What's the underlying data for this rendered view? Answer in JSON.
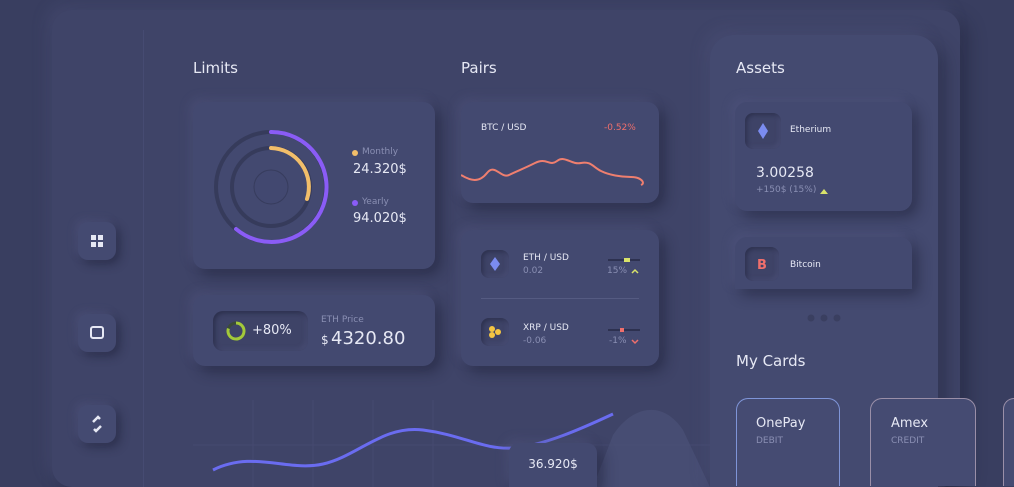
{
  "limits": {
    "title": "Limits",
    "monthly_label": "Monthly",
    "monthly_value": "24.320$",
    "yearly_label": "Yearly",
    "yearly_value": "94.020$"
  },
  "eth_price": {
    "change": "+80%",
    "label": "ETH Price",
    "currency": "$",
    "value": "4320.80"
  },
  "pairs": {
    "title": "Pairs",
    "btc": {
      "name": "BTC / USD",
      "change": "-0.52%"
    },
    "rows": [
      {
        "name": "ETH / USD",
        "value": "0.02",
        "change": "15%"
      },
      {
        "name": "XRP / USD",
        "value": "-0.06",
        "change": "-1%"
      }
    ]
  },
  "chart": {
    "tooltip": "36.920$"
  },
  "assets": {
    "title": "Assets",
    "items": [
      {
        "name": "Etherium",
        "value": "3.00258",
        "change": "+150$ (15%)"
      },
      {
        "name": "Bitcoin"
      }
    ]
  },
  "cards": {
    "title": "My Cards",
    "items": [
      {
        "name": "OnePay",
        "type": "DEBIT"
      },
      {
        "name": "Amex",
        "type": "CREDIT"
      }
    ]
  }
}
